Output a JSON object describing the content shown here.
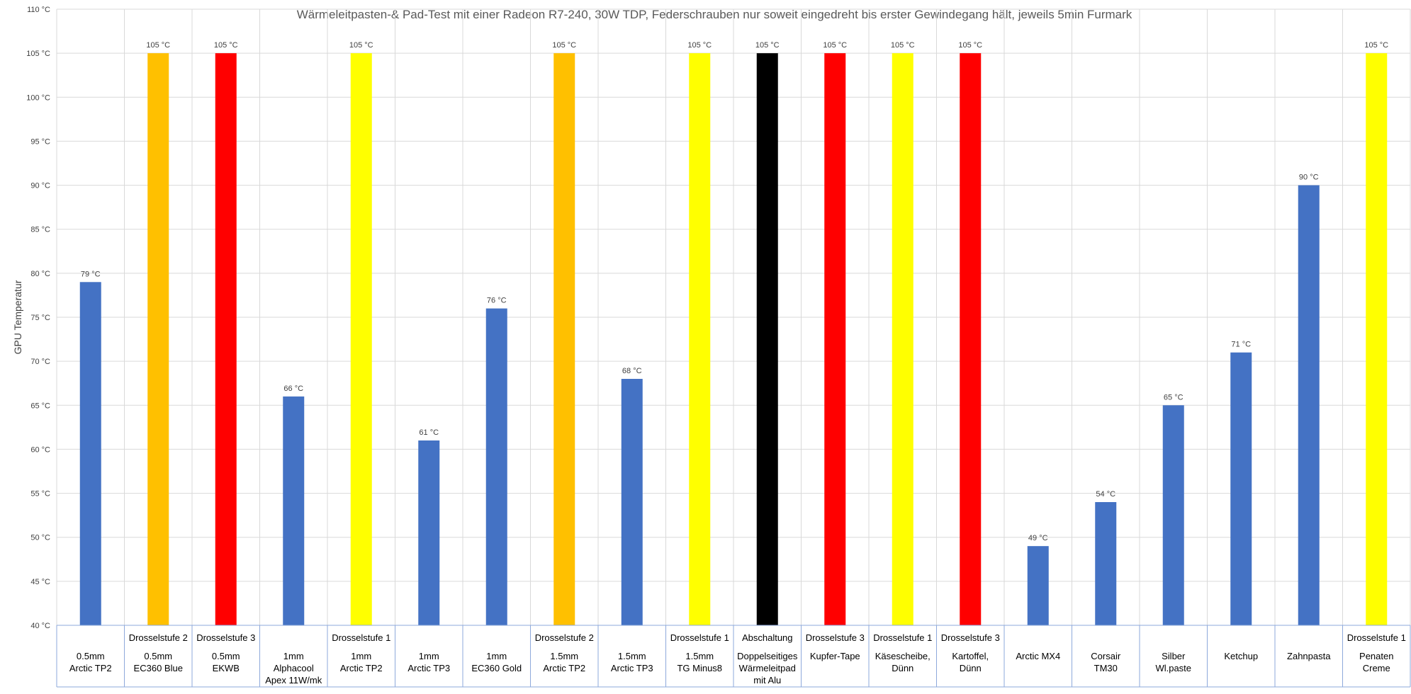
{
  "chart_data": {
    "type": "bar",
    "title": "Wärmeleitpasten-& Pad-Test mit einer Radeon R7-240, 30W TDP, Federschrauben nur soweit eingedreht bis erster Gewindegang hält, jeweils 5min Furmark",
    "ylabel": "GPU Temperatur",
    "xlabel": "",
    "ylim": [
      40,
      110
    ],
    "ytick_step": 5,
    "ytick_suffix": " °C",
    "value_label_suffix": " °C",
    "grid": true,
    "legend": "none",
    "bars": [
      {
        "status": "",
        "labels": [
          "0.5mm",
          "Arctic TP2"
        ],
        "value": 79,
        "color": "#4472C4"
      },
      {
        "status": "Drosselstufe 2",
        "labels": [
          "0.5mm",
          "EC360 Blue"
        ],
        "value": 105,
        "color": "#FFC000"
      },
      {
        "status": "Drosselstufe 3",
        "labels": [
          "0.5mm",
          "EKWB"
        ],
        "value": 105,
        "color": "#FF0000"
      },
      {
        "status": "",
        "labels": [
          "1mm",
          "Alphacool",
          "Apex 11W/mk"
        ],
        "value": 66,
        "color": "#4472C4"
      },
      {
        "status": "Drosselstufe 1",
        "labels": [
          "1mm",
          "Arctic TP2"
        ],
        "value": 105,
        "color": "#FFFF00"
      },
      {
        "status": "",
        "labels": [
          "1mm",
          "Arctic TP3"
        ],
        "value": 61,
        "color": "#4472C4"
      },
      {
        "status": "",
        "labels": [
          "1mm",
          "EC360 Gold"
        ],
        "value": 76,
        "color": "#4472C4"
      },
      {
        "status": "Drosselstufe 2",
        "labels": [
          "1.5mm",
          "Arctic TP2"
        ],
        "value": 105,
        "color": "#FFC000"
      },
      {
        "status": "",
        "labels": [
          "1.5mm",
          "Arctic TP3"
        ],
        "value": 68,
        "color": "#4472C4"
      },
      {
        "status": "Drosselstufe 1",
        "labels": [
          "1.5mm",
          "TG Minus8"
        ],
        "value": 105,
        "color": "#FFFF00"
      },
      {
        "status": "Abschaltung",
        "labels": [
          "Doppelseitiges",
          "Wärmeleitpad",
          "mit Alu"
        ],
        "value": 105,
        "color": "#000000"
      },
      {
        "status": "Drosselstufe 3",
        "labels": [
          "Kupfer-Tape"
        ],
        "value": 105,
        "color": "#FF0000"
      },
      {
        "status": "Drosselstufe 1",
        "labels": [
          "Käsescheibe,",
          "Dünn"
        ],
        "value": 105,
        "color": "#FFFF00"
      },
      {
        "status": "Drosselstufe 3",
        "labels": [
          "Kartoffel,",
          "Dünn"
        ],
        "value": 105,
        "color": "#FF0000"
      },
      {
        "status": "",
        "labels": [
          "Arctic MX4"
        ],
        "value": 49,
        "color": "#4472C4"
      },
      {
        "status": "",
        "labels": [
          "Corsair",
          "TM30"
        ],
        "value": 54,
        "color": "#4472C4"
      },
      {
        "status": "",
        "labels": [
          "Silber",
          "Wl.paste"
        ],
        "value": 65,
        "color": "#4472C4"
      },
      {
        "status": "",
        "labels": [
          "Ketchup"
        ],
        "value": 71,
        "color": "#4472C4"
      },
      {
        "status": "",
        "labels": [
          "Zahnpasta"
        ],
        "value": 90,
        "color": "#4472C4"
      },
      {
        "status": "Drosselstufe 1",
        "labels": [
          "Penaten",
          "Creme"
        ],
        "value": 105,
        "color": "#FFFF00"
      }
    ]
  }
}
